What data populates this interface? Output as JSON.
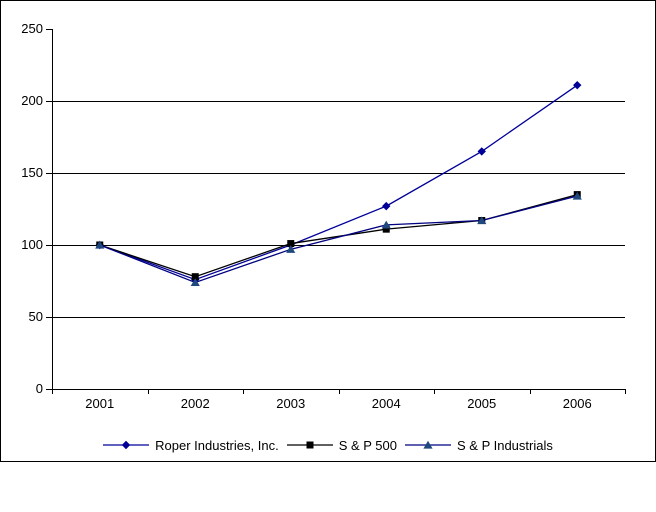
{
  "chart_data": {
    "type": "line",
    "title": "",
    "xlabel": "",
    "ylabel": "",
    "x": [
      "2001",
      "2002",
      "2003",
      "2004",
      "2005",
      "2006"
    ],
    "series": [
      {
        "name": "Roper Industries, Inc.",
        "marker": "diamond",
        "line_color": "#000099",
        "marker_color": "#000099",
        "values": [
          100,
          76,
          100,
          127,
          165,
          211
        ]
      },
      {
        "name": "S & P 500",
        "marker": "square",
        "line_color": "#000000",
        "marker_color": "#000000",
        "values": [
          100,
          78,
          101,
          111,
          117,
          135
        ]
      },
      {
        "name": "S & P Industrials",
        "marker": "triangle",
        "line_color": "#000080",
        "marker_color": "#1F497D",
        "values": [
          100,
          74,
          97,
          114,
          117,
          134
        ]
      }
    ],
    "ylim": [
      0,
      250
    ],
    "yticks": [
      0,
      50,
      100,
      150,
      200,
      250
    ],
    "grid": "horizontal-only",
    "legend_position": "bottom",
    "axis_color": "#000000",
    "background_color": "#FFFFFF"
  }
}
